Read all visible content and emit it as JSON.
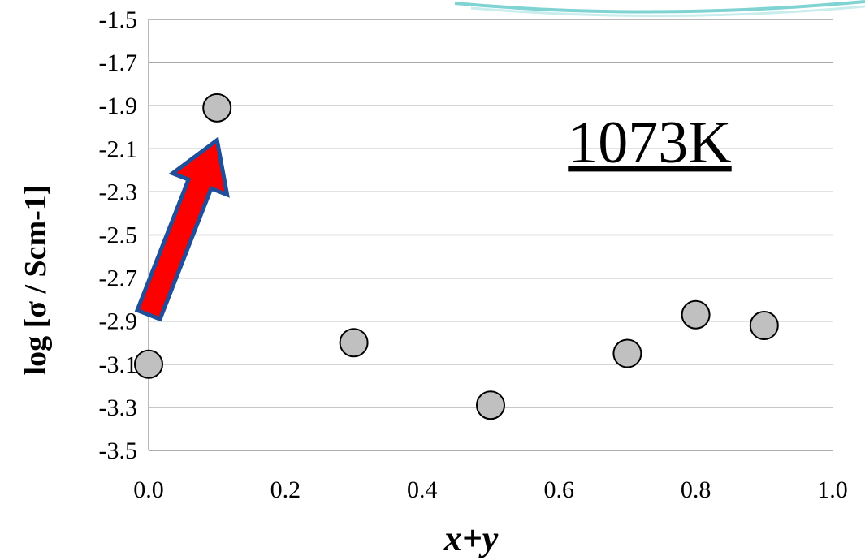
{
  "chart_data": {
    "type": "scatter",
    "x": [
      0.0,
      0.1,
      0.3,
      0.5,
      0.7,
      0.8,
      0.9
    ],
    "y": [
      -3.1,
      -1.91,
      -3.0,
      -3.29,
      -3.05,
      -2.87,
      -2.92
    ],
    "xlabel": "x+y",
    "ylabel": "log  [σ / Scm-1]",
    "xlim": [
      0.0,
      1.0
    ],
    "ylim": [
      -3.5,
      -1.5
    ],
    "xticks": [
      "0.0",
      "0.2",
      "0.4",
      "0.6",
      "0.8",
      "1.0"
    ],
    "yticks": [
      "-1.5",
      "-1.7",
      "-1.9",
      "-2.1",
      "-2.3",
      "-2.5",
      "-2.7",
      "-2.9",
      "-3.1",
      "-3.3",
      "-3.5"
    ],
    "grid": "horizontal",
    "marker_fill": "#c0c0c0",
    "marker_edge": "#000000",
    "annotation": "1073K",
    "arrow": {
      "from": [
        0.0,
        -2.87
      ],
      "to": [
        0.1,
        -2.06
      ],
      "fill": "#ff0000",
      "edge": "#1f4e9a"
    }
  }
}
